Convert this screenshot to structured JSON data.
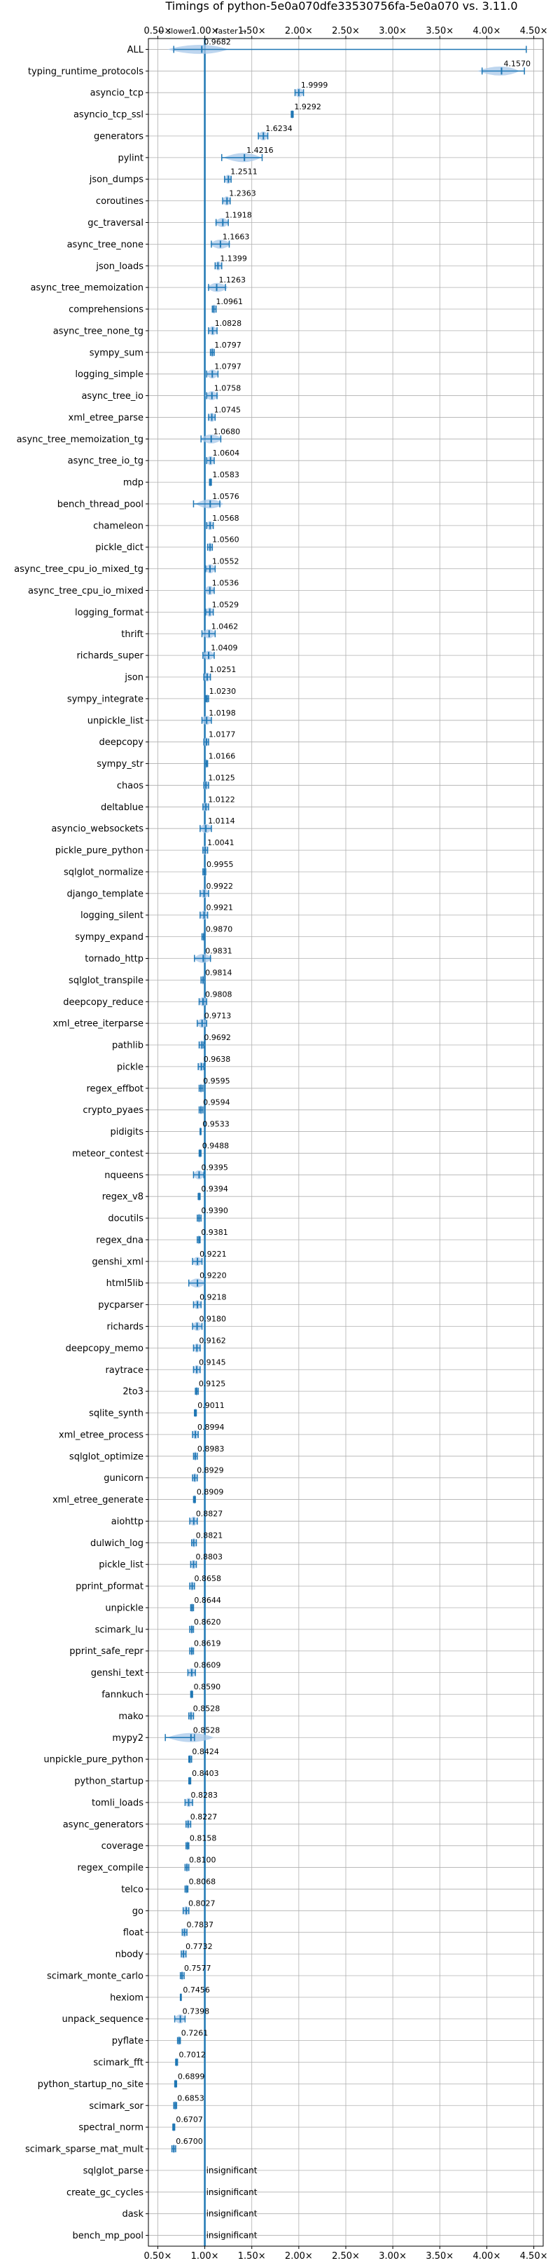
{
  "chart_data": {
    "type": "scatter",
    "title": "Timings of python-5e0a070dfe33530756fa-5e0a070 vs. 3.11.0",
    "direction_labels": {
      "slower": "← slower",
      "faster": "faster →"
    },
    "xlim": [
      0.4,
      4.6
    ],
    "x_ticks": [
      0.5,
      1.0,
      1.5,
      2.0,
      2.5,
      3.0,
      3.5,
      4.0,
      4.5
    ],
    "x_tick_labels": [
      "0.50×",
      "1.00×",
      "1.50×",
      "2.00×",
      "2.50×",
      "3.00×",
      "3.50×",
      "4.00×",
      "4.50×"
    ],
    "reference_line": 1.0,
    "grid": true,
    "colors": {
      "point": "#1f77b4",
      "violin": "#a8c8ea",
      "ref_line": "#1f77b4",
      "grid": "#b0b0b0"
    },
    "benchmarks": [
      {
        "name": "ALL",
        "value": 0.9682,
        "label": "0.9682",
        "lo": 0.67,
        "hi": 4.42,
        "vmin": 0.6,
        "vmax": 1.25
      },
      {
        "name": "typing_runtime_protocols",
        "value": 4.157,
        "label": "4.1570",
        "lo": 3.95,
        "hi": 4.4,
        "vmin": 3.9,
        "vmax": 4.35
      },
      {
        "name": "asyncio_tcp",
        "value": 1.9999,
        "label": "1.9999",
        "lo": 1.96,
        "hi": 2.05,
        "vmin": 1.95,
        "vmax": 2.06
      },
      {
        "name": "asyncio_tcp_ssl",
        "value": 1.9292,
        "label": "1.9292",
        "lo": 1.92,
        "hi": 1.94,
        "vmin": 1.915,
        "vmax": 1.945
      },
      {
        "name": "generators",
        "value": 1.6234,
        "label": "1.6234",
        "lo": 1.57,
        "hi": 1.67,
        "vmin": 1.56,
        "vmax": 1.68
      },
      {
        "name": "pylint",
        "value": 1.4216,
        "label": "1.4216",
        "lo": 1.18,
        "hi": 1.61,
        "vmin": 1.2,
        "vmax": 1.6
      },
      {
        "name": "json_dumps",
        "value": 1.2511,
        "label": "1.2511",
        "lo": 1.21,
        "hi": 1.28,
        "vmin": 1.2,
        "vmax": 1.29
      },
      {
        "name": "coroutines",
        "value": 1.2363,
        "label": "1.2363",
        "lo": 1.19,
        "hi": 1.27,
        "vmin": 1.18,
        "vmax": 1.28
      },
      {
        "name": "gc_traversal",
        "value": 1.1918,
        "label": "1.1918",
        "lo": 1.12,
        "hi": 1.25,
        "vmin": 1.1,
        "vmax": 1.26
      },
      {
        "name": "async_tree_none",
        "value": 1.1663,
        "label": "1.1663",
        "lo": 1.07,
        "hi": 1.26,
        "vmin": 1.05,
        "vmax": 1.28
      },
      {
        "name": "json_loads",
        "value": 1.1399,
        "label": "1.1399",
        "lo": 1.11,
        "hi": 1.18,
        "vmin": 1.1,
        "vmax": 1.19
      },
      {
        "name": "async_tree_memoization",
        "value": 1.1263,
        "label": "1.1263",
        "lo": 1.04,
        "hi": 1.22,
        "vmin": 1.02,
        "vmax": 1.25
      },
      {
        "name": "comprehensions",
        "value": 1.0961,
        "label": "1.0961",
        "lo": 1.08,
        "hi": 1.12,
        "vmin": 1.07,
        "vmax": 1.13
      },
      {
        "name": "async_tree_none_tg",
        "value": 1.0828,
        "label": "1.0828",
        "lo": 1.04,
        "hi": 1.13,
        "vmin": 1.03,
        "vmax": 1.14
      },
      {
        "name": "sympy_sum",
        "value": 1.0797,
        "label": "1.0797",
        "lo": 1.06,
        "hi": 1.1,
        "vmin": 1.05,
        "vmax": 1.11
      },
      {
        "name": "logging_simple",
        "value": 1.0797,
        "label": "1.0797",
        "lo": 1.02,
        "hi": 1.14,
        "vmin": 1.01,
        "vmax": 1.15
      },
      {
        "name": "async_tree_io",
        "value": 1.0758,
        "label": "1.0758",
        "lo": 1.02,
        "hi": 1.13,
        "vmin": 1.0,
        "vmax": 1.15
      },
      {
        "name": "xml_etree_parse",
        "value": 1.0745,
        "label": "1.0745",
        "lo": 1.04,
        "hi": 1.11,
        "vmin": 1.03,
        "vmax": 1.12
      },
      {
        "name": "async_tree_memoization_tg",
        "value": 1.068,
        "label": "1.0680",
        "lo": 0.96,
        "hi": 1.17,
        "vmin": 0.95,
        "vmax": 1.19
      },
      {
        "name": "async_tree_io_tg",
        "value": 1.0604,
        "label": "1.0604",
        "lo": 1.02,
        "hi": 1.1,
        "vmin": 1.01,
        "vmax": 1.11
      },
      {
        "name": "mdp",
        "value": 1.0583,
        "label": "1.0583",
        "lo": 1.05,
        "hi": 1.07,
        "vmin": 1.045,
        "vmax": 1.075
      },
      {
        "name": "bench_thread_pool",
        "value": 1.0576,
        "label": "1.0576",
        "lo": 0.88,
        "hi": 1.16,
        "vmin": 0.9,
        "vmax": 1.2
      },
      {
        "name": "chameleon",
        "value": 1.0568,
        "label": "1.0568",
        "lo": 1.02,
        "hi": 1.09,
        "vmin": 1.01,
        "vmax": 1.1
      },
      {
        "name": "pickle_dict",
        "value": 1.056,
        "label": "1.0560",
        "lo": 1.03,
        "hi": 1.08,
        "vmin": 1.02,
        "vmax": 1.09
      },
      {
        "name": "async_tree_cpu_io_mixed_tg",
        "value": 1.0552,
        "label": "1.0552",
        "lo": 1.01,
        "hi": 1.11,
        "vmin": 1.0,
        "vmax": 1.12
      },
      {
        "name": "async_tree_cpu_io_mixed",
        "value": 1.0536,
        "label": "1.0536",
        "lo": 1.0,
        "hi": 1.1,
        "vmin": 0.99,
        "vmax": 1.11
      },
      {
        "name": "logging_format",
        "value": 1.0529,
        "label": "1.0529",
        "lo": 1.01,
        "hi": 1.09,
        "vmin": 1.0,
        "vmax": 1.1
      },
      {
        "name": "thrift",
        "value": 1.0462,
        "label": "1.0462",
        "lo": 0.97,
        "hi": 1.11,
        "vmin": 0.96,
        "vmax": 1.12
      },
      {
        "name": "richards_super",
        "value": 1.0409,
        "label": "1.0409",
        "lo": 0.98,
        "hi": 1.1,
        "vmin": 0.97,
        "vmax": 1.11
      },
      {
        "name": "json",
        "value": 1.0251,
        "label": "1.0251",
        "lo": 0.99,
        "hi": 1.06,
        "vmin": 0.98,
        "vmax": 1.07
      },
      {
        "name": "sympy_integrate",
        "value": 1.023,
        "label": "1.0230",
        "lo": 1.01,
        "hi": 1.04,
        "vmin": 1.005,
        "vmax": 1.045
      },
      {
        "name": "unpickle_list",
        "value": 1.0198,
        "label": "1.0198",
        "lo": 0.97,
        "hi": 1.07,
        "vmin": 0.96,
        "vmax": 1.08
      },
      {
        "name": "deepcopy",
        "value": 1.0177,
        "label": "1.0177",
        "lo": 0.99,
        "hi": 1.04,
        "vmin": 0.98,
        "vmax": 1.05
      },
      {
        "name": "sympy_str",
        "value": 1.0166,
        "label": "1.0166",
        "lo": 1.0,
        "hi": 1.03,
        "vmin": 0.995,
        "vmax": 1.035
      },
      {
        "name": "chaos",
        "value": 1.0125,
        "label": "1.0125",
        "lo": 0.99,
        "hi": 1.04,
        "vmin": 0.98,
        "vmax": 1.05
      },
      {
        "name": "deltablue",
        "value": 1.0122,
        "label": "1.0122",
        "lo": 0.98,
        "hi": 1.04,
        "vmin": 0.97,
        "vmax": 1.05
      },
      {
        "name": "asyncio_websockets",
        "value": 1.0114,
        "label": "1.0114",
        "lo": 0.95,
        "hi": 1.07,
        "vmin": 0.94,
        "vmax": 1.08
      },
      {
        "name": "pickle_pure_python",
        "value": 1.0041,
        "label": "1.0041",
        "lo": 0.98,
        "hi": 1.03,
        "vmin": 0.97,
        "vmax": 1.04
      },
      {
        "name": "sqlglot_normalize",
        "value": 0.9955,
        "label": "0.9955",
        "lo": 0.98,
        "hi": 1.01,
        "vmin": 0.975,
        "vmax": 1.015
      },
      {
        "name": "django_template",
        "value": 0.9922,
        "label": "0.9922",
        "lo": 0.95,
        "hi": 1.04,
        "vmin": 0.94,
        "vmax": 1.05
      },
      {
        "name": "logging_silent",
        "value": 0.9921,
        "label": "0.9921",
        "lo": 0.95,
        "hi": 1.03,
        "vmin": 0.94,
        "vmax": 1.04
      },
      {
        "name": "sympy_expand",
        "value": 0.987,
        "label": "0.9870",
        "lo": 0.97,
        "hi": 1.0,
        "vmin": 0.965,
        "vmax": 1.005
      },
      {
        "name": "tornado_http",
        "value": 0.9831,
        "label": "0.9831",
        "lo": 0.89,
        "hi": 1.06,
        "vmin": 0.88,
        "vmax": 1.08
      },
      {
        "name": "sqlglot_transpile",
        "value": 0.9814,
        "label": "0.9814",
        "lo": 0.96,
        "hi": 1.0,
        "vmin": 0.955,
        "vmax": 1.005
      },
      {
        "name": "deepcopy_reduce",
        "value": 0.9808,
        "label": "0.9808",
        "lo": 0.94,
        "hi": 1.02,
        "vmin": 0.93,
        "vmax": 1.03
      },
      {
        "name": "xml_etree_iterparse",
        "value": 0.9713,
        "label": "0.9713",
        "lo": 0.92,
        "hi": 1.02,
        "vmin": 0.91,
        "vmax": 1.03
      },
      {
        "name": "pathlib",
        "value": 0.9692,
        "label": "0.9692",
        "lo": 0.94,
        "hi": 0.99,
        "vmin": 0.93,
        "vmax": 1.0
      },
      {
        "name": "pickle",
        "value": 0.9638,
        "label": "0.9638",
        "lo": 0.93,
        "hi": 0.99,
        "vmin": 0.92,
        "vmax": 1.0
      },
      {
        "name": "regex_effbot",
        "value": 0.9595,
        "label": "0.9595",
        "lo": 0.94,
        "hi": 0.98,
        "vmin": 0.935,
        "vmax": 0.985
      },
      {
        "name": "crypto_pyaes",
        "value": 0.9594,
        "label": "0.9594",
        "lo": 0.94,
        "hi": 0.98,
        "vmin": 0.935,
        "vmax": 0.985
      },
      {
        "name": "pidigits",
        "value": 0.9533,
        "label": "0.9533",
        "lo": 0.95,
        "hi": 0.96,
        "vmin": 0.945,
        "vmax": 0.96
      },
      {
        "name": "meteor_contest",
        "value": 0.9488,
        "label": "0.9488",
        "lo": 0.94,
        "hi": 0.96,
        "vmin": 0.935,
        "vmax": 0.965
      },
      {
        "name": "nqueens",
        "value": 0.9395,
        "label": "0.9395",
        "lo": 0.88,
        "hi": 0.99,
        "vmin": 0.87,
        "vmax": 1.0
      },
      {
        "name": "regex_v8",
        "value": 0.9394,
        "label": "0.9394",
        "lo": 0.93,
        "hi": 0.95,
        "vmin": 0.925,
        "vmax": 0.955
      },
      {
        "name": "docutils",
        "value": 0.939,
        "label": "0.9390",
        "lo": 0.92,
        "hi": 0.96,
        "vmin": 0.915,
        "vmax": 0.965
      },
      {
        "name": "regex_dna",
        "value": 0.9381,
        "label": "0.9381",
        "lo": 0.92,
        "hi": 0.95,
        "vmin": 0.915,
        "vmax": 0.955
      },
      {
        "name": "genshi_xml",
        "value": 0.9221,
        "label": "0.9221",
        "lo": 0.87,
        "hi": 0.97,
        "vmin": 0.86,
        "vmax": 0.98
      },
      {
        "name": "html5lib",
        "value": 0.922,
        "label": "0.9220",
        "lo": 0.83,
        "hi": 1.0,
        "vmin": 0.82,
        "vmax": 1.01
      },
      {
        "name": "pycparser",
        "value": 0.9218,
        "label": "0.9218",
        "lo": 0.88,
        "hi": 0.96,
        "vmin": 0.87,
        "vmax": 0.97
      },
      {
        "name": "richards",
        "value": 0.918,
        "label": "0.9180",
        "lo": 0.87,
        "hi": 0.97,
        "vmin": 0.86,
        "vmax": 0.98
      },
      {
        "name": "deepcopy_memo",
        "value": 0.9162,
        "label": "0.9162",
        "lo": 0.88,
        "hi": 0.95,
        "vmin": 0.87,
        "vmax": 0.96
      },
      {
        "name": "raytrace",
        "value": 0.9145,
        "label": "0.9145",
        "lo": 0.88,
        "hi": 0.95,
        "vmin": 0.87,
        "vmax": 0.96
      },
      {
        "name": "2to3",
        "value": 0.9125,
        "label": "0.9125",
        "lo": 0.9,
        "hi": 0.93,
        "vmin": 0.895,
        "vmax": 0.935
      },
      {
        "name": "sqlite_synth",
        "value": 0.9011,
        "label": "0.9011",
        "lo": 0.89,
        "hi": 0.91,
        "vmin": 0.885,
        "vmax": 0.915
      },
      {
        "name": "xml_etree_process",
        "value": 0.8994,
        "label": "0.8994",
        "lo": 0.87,
        "hi": 0.93,
        "vmin": 0.86,
        "vmax": 0.94
      },
      {
        "name": "sqlglot_optimize",
        "value": 0.8983,
        "label": "0.8983",
        "lo": 0.88,
        "hi": 0.92,
        "vmin": 0.875,
        "vmax": 0.925
      },
      {
        "name": "gunicorn",
        "value": 0.8929,
        "label": "0.8929",
        "lo": 0.87,
        "hi": 0.92,
        "vmin": 0.86,
        "vmax": 0.93
      },
      {
        "name": "xml_etree_generate",
        "value": 0.8909,
        "label": "0.8909",
        "lo": 0.88,
        "hi": 0.9,
        "vmin": 0.875,
        "vmax": 0.905
      },
      {
        "name": "aiohttp",
        "value": 0.8827,
        "label": "0.8827",
        "lo": 0.84,
        "hi": 0.92,
        "vmin": 0.83,
        "vmax": 0.93
      },
      {
        "name": "dulwich_log",
        "value": 0.8821,
        "label": "0.8821",
        "lo": 0.86,
        "hi": 0.91,
        "vmin": 0.85,
        "vmax": 0.92
      },
      {
        "name": "pickle_list",
        "value": 0.8803,
        "label": "0.8803",
        "lo": 0.85,
        "hi": 0.91,
        "vmin": 0.84,
        "vmax": 0.92
      },
      {
        "name": "pprint_pformat",
        "value": 0.8658,
        "label": "0.8658",
        "lo": 0.84,
        "hi": 0.89,
        "vmin": 0.83,
        "vmax": 0.9
      },
      {
        "name": "unpickle",
        "value": 0.8644,
        "label": "0.8644",
        "lo": 0.85,
        "hi": 0.88,
        "vmin": 0.845,
        "vmax": 0.885
      },
      {
        "name": "scimark_lu",
        "value": 0.862,
        "label": "0.8620",
        "lo": 0.84,
        "hi": 0.88,
        "vmin": 0.835,
        "vmax": 0.885
      },
      {
        "name": "pprint_safe_repr",
        "value": 0.8619,
        "label": "0.8619",
        "lo": 0.84,
        "hi": 0.88,
        "vmin": 0.835,
        "vmax": 0.885
      },
      {
        "name": "genshi_text",
        "value": 0.8609,
        "label": "0.8609",
        "lo": 0.82,
        "hi": 0.9,
        "vmin": 0.81,
        "vmax": 0.91
      },
      {
        "name": "fannkuch",
        "value": 0.859,
        "label": "0.8590",
        "lo": 0.85,
        "hi": 0.87,
        "vmin": 0.845,
        "vmax": 0.875
      },
      {
        "name": "mako",
        "value": 0.8528,
        "label": "0.8528",
        "lo": 0.83,
        "hi": 0.88,
        "vmin": 0.82,
        "vmax": 0.89
      },
      {
        "name": "mypy2",
        "value": 0.8528,
        "label": "0.8528",
        "lo": 0.58,
        "hi": 0.89,
        "vmin": 0.6,
        "vmax": 1.1
      },
      {
        "name": "unpickle_pure_python",
        "value": 0.8424,
        "label": "0.8424",
        "lo": 0.83,
        "hi": 0.86,
        "vmin": 0.825,
        "vmax": 0.865
      },
      {
        "name": "python_startup",
        "value": 0.8403,
        "label": "0.8403",
        "lo": 0.83,
        "hi": 0.85,
        "vmin": 0.828,
        "vmax": 0.852
      },
      {
        "name": "tomli_loads",
        "value": 0.8283,
        "label": "0.8283",
        "lo": 0.79,
        "hi": 0.87,
        "vmin": 0.78,
        "vmax": 0.88
      },
      {
        "name": "async_generators",
        "value": 0.8227,
        "label": "0.8227",
        "lo": 0.8,
        "hi": 0.85,
        "vmin": 0.79,
        "vmax": 0.86
      },
      {
        "name": "coverage",
        "value": 0.8158,
        "label": "0.8158",
        "lo": 0.8,
        "hi": 0.83,
        "vmin": 0.795,
        "vmax": 0.835
      },
      {
        "name": "regex_compile",
        "value": 0.81,
        "label": "0.8100",
        "lo": 0.79,
        "hi": 0.83,
        "vmin": 0.785,
        "vmax": 0.835
      },
      {
        "name": "telco",
        "value": 0.8068,
        "label": "0.8068",
        "lo": 0.79,
        "hi": 0.82,
        "vmin": 0.785,
        "vmax": 0.825
      },
      {
        "name": "go",
        "value": 0.8027,
        "label": "0.8027",
        "lo": 0.77,
        "hi": 0.83,
        "vmin": 0.76,
        "vmax": 0.84
      },
      {
        "name": "float",
        "value": 0.7837,
        "label": "0.7837",
        "lo": 0.76,
        "hi": 0.81,
        "vmin": 0.75,
        "vmax": 0.82
      },
      {
        "name": "nbody",
        "value": 0.7732,
        "label": "0.7732",
        "lo": 0.75,
        "hi": 0.8,
        "vmin": 0.745,
        "vmax": 0.805
      },
      {
        "name": "scimark_monte_carlo",
        "value": 0.7577,
        "label": "0.7577",
        "lo": 0.74,
        "hi": 0.78,
        "vmin": 0.735,
        "vmax": 0.785
      },
      {
        "name": "hexiom",
        "value": 0.7456,
        "label": "0.7456",
        "lo": 0.74,
        "hi": 0.75,
        "vmin": 0.735,
        "vmax": 0.755
      },
      {
        "name": "unpack_sequence",
        "value": 0.7398,
        "label": "0.7398",
        "lo": 0.68,
        "hi": 0.79,
        "vmin": 0.67,
        "vmax": 0.8
      },
      {
        "name": "pyflate",
        "value": 0.7261,
        "label": "0.7261",
        "lo": 0.71,
        "hi": 0.74,
        "vmin": 0.705,
        "vmax": 0.745
      },
      {
        "name": "scimark_fft",
        "value": 0.7012,
        "label": "0.7012",
        "lo": 0.69,
        "hi": 0.71,
        "vmin": 0.688,
        "vmax": 0.714
      },
      {
        "name": "python_startup_no_site",
        "value": 0.6899,
        "label": "0.6899",
        "lo": 0.68,
        "hi": 0.7,
        "vmin": 0.675,
        "vmax": 0.705
      },
      {
        "name": "scimark_sor",
        "value": 0.6853,
        "label": "0.6853",
        "lo": 0.67,
        "hi": 0.7,
        "vmin": 0.665,
        "vmax": 0.705
      },
      {
        "name": "spectral_norm",
        "value": 0.6707,
        "label": "0.6707",
        "lo": 0.66,
        "hi": 0.68,
        "vmin": 0.655,
        "vmax": 0.685
      },
      {
        "name": "scimark_sparse_mat_mult",
        "value": 0.67,
        "label": "0.6700",
        "lo": 0.65,
        "hi": 0.69,
        "vmin": 0.645,
        "vmax": 0.695
      },
      {
        "name": "sqlglot_parse",
        "value": null,
        "label": "insignificant"
      },
      {
        "name": "create_gc_cycles",
        "value": null,
        "label": "insignificant"
      },
      {
        "name": "dask",
        "value": null,
        "label": "insignificant"
      },
      {
        "name": "bench_mp_pool",
        "value": null,
        "label": "insignificant"
      }
    ]
  }
}
